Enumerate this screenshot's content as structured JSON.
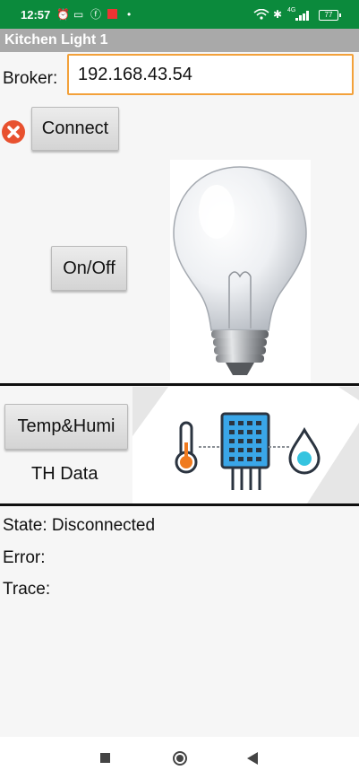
{
  "status_bar": {
    "time": "12:57",
    "icons": [
      "alarm-icon",
      "calendar-icon",
      "facebook-icon",
      "notification-icon",
      "dot-icon",
      "wifi-icon",
      "bluetooth-icon",
      "signal-icon"
    ],
    "network": "4G",
    "battery": "77"
  },
  "app": {
    "title": "Kitchen Light 1"
  },
  "broker": {
    "label": "Broker:",
    "value": "192.168.43.54"
  },
  "buttons": {
    "connect": "Connect",
    "onoff": "On/Off",
    "temp_humi": "Temp&Humi"
  },
  "sensor": {
    "label": "TH Data"
  },
  "info": {
    "state": "State: Disconnected",
    "error": "Error:",
    "trace": "Trace:"
  },
  "colors": {
    "status_bar": "#0b8a3c",
    "title_bar": "#a9a9a9",
    "input_border": "#f3a13a",
    "error_icon": "#e8512f",
    "sensor_blue": "#3aa6e8"
  }
}
